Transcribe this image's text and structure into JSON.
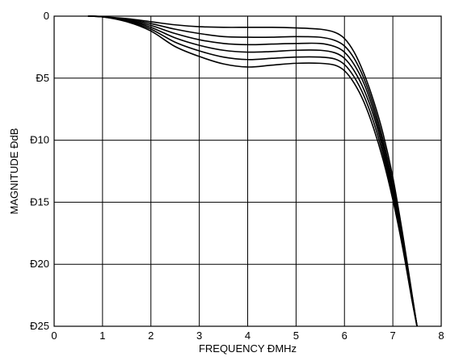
{
  "chart_data": {
    "type": "line",
    "title": "",
    "xlabel": "FREQUENCY ÐMHz",
    "ylabel": "MAGNITUDE ÐdB",
    "xlim": [
      0,
      8
    ],
    "ylim": [
      -25,
      0
    ],
    "x_ticks": [
      0,
      1,
      2,
      3,
      4,
      5,
      6,
      7,
      8
    ],
    "x_tick_labels": [
      "0",
      "1",
      "2",
      "3",
      "4",
      "5",
      "6",
      "7",
      "8"
    ],
    "y_ticks": [
      0,
      -5,
      -10,
      -15,
      -20,
      -25
    ],
    "y_tick_labels": [
      "0",
      "Ð5",
      "Ð10",
      "Ð15",
      "Ð20",
      "Ð25"
    ],
    "grid": true,
    "legend": "none",
    "line_color": "#000000",
    "series": [
      {
        "x": [
          0.7,
          1.0,
          1.5,
          2.0,
          2.5,
          3.0,
          3.5,
          4.0,
          4.5,
          5.0,
          5.5,
          5.8,
          6.0,
          6.2,
          6.4,
          6.6,
          6.8,
          7.0,
          7.2,
          7.4,
          7.5
        ],
        "y": [
          0.0,
          -0.05,
          -0.2,
          -0.45,
          -0.7,
          -0.85,
          -0.9,
          -0.9,
          -0.9,
          -0.95,
          -1.05,
          -1.3,
          -1.8,
          -2.9,
          -4.6,
          -6.8,
          -9.5,
          -13.0,
          -17.5,
          -22.5,
          -25.0
        ]
      },
      {
        "x": [
          0.7,
          1.0,
          1.5,
          2.0,
          2.5,
          3.0,
          3.5,
          4.0,
          4.5,
          5.0,
          5.5,
          5.8,
          6.0,
          6.2,
          6.4,
          6.6,
          6.8,
          7.0,
          7.2,
          7.4,
          7.5
        ],
        "y": [
          0.0,
          -0.05,
          -0.25,
          -0.6,
          -1.05,
          -1.4,
          -1.65,
          -1.7,
          -1.7,
          -1.65,
          -1.7,
          -1.95,
          -2.4,
          -3.4,
          -5.0,
          -7.2,
          -10.0,
          -13.5,
          -17.8,
          -22.6,
          -25.0
        ]
      },
      {
        "x": [
          0.7,
          1.0,
          1.5,
          2.0,
          2.5,
          3.0,
          3.5,
          4.0,
          4.5,
          5.0,
          5.5,
          5.8,
          6.0,
          6.2,
          6.4,
          6.6,
          6.8,
          7.0,
          7.2,
          7.4,
          7.5
        ],
        "y": [
          0.0,
          -0.05,
          -0.3,
          -0.75,
          -1.4,
          -1.9,
          -2.2,
          -2.3,
          -2.25,
          -2.2,
          -2.2,
          -2.45,
          -2.9,
          -3.9,
          -5.4,
          -7.6,
          -10.4,
          -13.9,
          -18.0,
          -22.7,
          -25.0
        ]
      },
      {
        "x": [
          0.7,
          1.0,
          1.5,
          2.0,
          2.5,
          3.0,
          3.5,
          4.0,
          4.5,
          5.0,
          5.5,
          5.8,
          6.0,
          6.2,
          6.4,
          6.6,
          6.8,
          7.0,
          7.2,
          7.4,
          7.5
        ],
        "y": [
          0.0,
          -0.05,
          -0.35,
          -0.9,
          -1.75,
          -2.35,
          -2.75,
          -2.9,
          -2.85,
          -2.75,
          -2.75,
          -2.95,
          -3.4,
          -4.4,
          -5.9,
          -8.0,
          -10.8,
          -14.2,
          -18.2,
          -22.8,
          -25.0
        ]
      },
      {
        "x": [
          0.7,
          1.0,
          1.5,
          2.0,
          2.5,
          3.0,
          3.5,
          4.0,
          4.5,
          5.0,
          5.5,
          5.8,
          6.0,
          6.2,
          6.4,
          6.6,
          6.8,
          7.0,
          7.2,
          7.4,
          7.5
        ],
        "y": [
          0.0,
          -0.05,
          -0.4,
          -1.05,
          -2.1,
          -2.8,
          -3.3,
          -3.5,
          -3.4,
          -3.3,
          -3.3,
          -3.45,
          -3.9,
          -4.9,
          -6.4,
          -8.5,
          -11.2,
          -14.5,
          -18.4,
          -22.9,
          -25.0
        ]
      },
      {
        "x": [
          0.7,
          1.0,
          1.5,
          2.0,
          2.5,
          3.0,
          3.5,
          4.0,
          4.5,
          5.0,
          5.5,
          5.8,
          6.0,
          6.2,
          6.4,
          6.6,
          6.8,
          7.0,
          7.2,
          7.4,
          7.5
        ],
        "y": [
          0.0,
          -0.05,
          -0.45,
          -1.2,
          -2.45,
          -3.25,
          -3.85,
          -4.1,
          -3.95,
          -3.8,
          -3.8,
          -3.95,
          -4.4,
          -5.4,
          -6.9,
          -9.0,
          -11.6,
          -14.8,
          -18.6,
          -23.0,
          -25.0
        ]
      }
    ]
  }
}
